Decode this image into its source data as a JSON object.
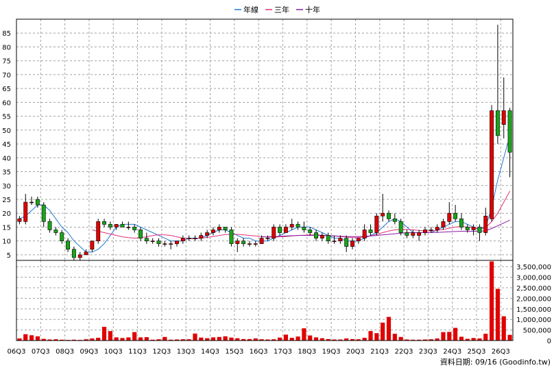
{
  "legend": {
    "items": [
      {
        "label": "年線",
        "color": "#1f77d0"
      },
      {
        "label": "三年",
        "color": "#e0307a"
      },
      {
        "label": "十年",
        "color": "#8a1aa8"
      }
    ]
  },
  "footer_label": "資料日期: 09/16  (Goodinfo.tw)",
  "colors": {
    "up": "#e00000",
    "down": "#1aa51a",
    "volume": "#e00000",
    "grid": "#a0a0a0"
  },
  "chart_data": [
    {
      "type": "candlestick",
      "title": "",
      "ylim": [
        0,
        90
      ],
      "ytick_labels": [
        "5",
        "10",
        "15",
        "20",
        "25",
        "30",
        "35",
        "40",
        "45",
        "50",
        "55",
        "60",
        "65",
        "70",
        "75",
        "80",
        "85"
      ],
      "ytick_values": [
        5,
        10,
        15,
        20,
        25,
        30,
        35,
        40,
        45,
        50,
        55,
        60,
        65,
        70,
        75,
        80,
        85
      ],
      "xtick_labels": [
        "06Q3",
        "07Q3",
        "08Q3",
        "09Q3",
        "10Q3",
        "11Q3",
        "12Q3",
        "13Q3",
        "14Q3",
        "15Q3",
        "16Q3",
        "17Q3",
        "18Q3",
        "19Q3",
        "20Q3",
        "21Q3",
        "22Q3",
        "23Q3",
        "24Q3",
        "25Q3",
        "26Q3"
      ],
      "grid": true,
      "legend_position": "top",
      "candles": [
        {
          "o": 17,
          "h": 19,
          "l": 16,
          "c": 18
        },
        {
          "o": 17,
          "h": 27,
          "l": 16,
          "c": 24
        },
        {
          "o": 24,
          "h": 26,
          "l": 23,
          "c": 24
        },
        {
          "o": 25,
          "h": 26,
          "l": 22,
          "c": 23
        },
        {
          "o": 23,
          "h": 24,
          "l": 15,
          "c": 17
        },
        {
          "o": 17,
          "h": 18,
          "l": 13,
          "c": 14
        },
        {
          "o": 14,
          "h": 15,
          "l": 12,
          "c": 13
        },
        {
          "o": 13,
          "h": 14,
          "l": 9,
          "c": 10
        },
        {
          "o": 10,
          "h": 11,
          "l": 6,
          "c": 7
        },
        {
          "o": 7,
          "h": 8,
          "l": 3,
          "c": 4
        },
        {
          "o": 4,
          "h": 6,
          "l": 3,
          "c": 5
        },
        {
          "o": 5,
          "h": 7,
          "l": 5,
          "c": 6
        },
        {
          "o": 7,
          "h": 10,
          "l": 6,
          "c": 10
        },
        {
          "o": 10,
          "h": 18,
          "l": 9,
          "c": 17
        },
        {
          "o": 17,
          "h": 18,
          "l": 15,
          "c": 16
        },
        {
          "o": 16,
          "h": 17,
          "l": 14,
          "c": 15
        },
        {
          "o": 15,
          "h": 16,
          "l": 14,
          "c": 16
        },
        {
          "o": 16,
          "h": 17,
          "l": 15,
          "c": 15
        },
        {
          "o": 15,
          "h": 17,
          "l": 14,
          "c": 15
        },
        {
          "o": 15,
          "h": 16,
          "l": 13,
          "c": 14
        },
        {
          "o": 14,
          "h": 15,
          "l": 10,
          "c": 11
        },
        {
          "o": 11,
          "h": 13,
          "l": 9,
          "c": 10
        },
        {
          "o": 10,
          "h": 11,
          "l": 9,
          "c": 10
        },
        {
          "o": 10,
          "h": 11,
          "l": 8,
          "c": 9
        },
        {
          "o": 9,
          "h": 10,
          "l": 8,
          "c": 9
        },
        {
          "o": 9,
          "h": 10,
          "l": 7,
          "c": 9
        },
        {
          "o": 9,
          "h": 10,
          "l": 8,
          "c": 10
        },
        {
          "o": 10,
          "h": 12,
          "l": 9,
          "c": 11
        },
        {
          "o": 11,
          "h": 12,
          "l": 10,
          "c": 11
        },
        {
          "o": 11,
          "h": 12,
          "l": 10,
          "c": 11
        },
        {
          "o": 11,
          "h": 13,
          "l": 10,
          "c": 12
        },
        {
          "o": 12,
          "h": 14,
          "l": 11,
          "c": 13
        },
        {
          "o": 13,
          "h": 15,
          "l": 12,
          "c": 14
        },
        {
          "o": 14,
          "h": 16,
          "l": 13,
          "c": 15
        },
        {
          "o": 15,
          "h": 15,
          "l": 13,
          "c": 14
        },
        {
          "o": 14,
          "h": 15,
          "l": 8,
          "c": 9
        },
        {
          "o": 9,
          "h": 11,
          "l": 6,
          "c": 10
        },
        {
          "o": 10,
          "h": 11,
          "l": 8,
          "c": 9
        },
        {
          "o": 9,
          "h": 10,
          "l": 8,
          "c": 9
        },
        {
          "o": 9,
          "h": 10,
          "l": 8,
          "c": 9
        },
        {
          "o": 9,
          "h": 12,
          "l": 9,
          "c": 11
        },
        {
          "o": 11,
          "h": 12,
          "l": 10,
          "c": 11
        },
        {
          "o": 11,
          "h": 16,
          "l": 10,
          "c": 15
        },
        {
          "o": 15,
          "h": 16,
          "l": 12,
          "c": 13
        },
        {
          "o": 13,
          "h": 16,
          "l": 13,
          "c": 15
        },
        {
          "o": 15,
          "h": 18,
          "l": 14,
          "c": 16
        },
        {
          "o": 16,
          "h": 17,
          "l": 14,
          "c": 15
        },
        {
          "o": 15,
          "h": 17,
          "l": 13,
          "c": 14
        },
        {
          "o": 14,
          "h": 15,
          "l": 12,
          "c": 13
        },
        {
          "o": 13,
          "h": 14,
          "l": 10,
          "c": 11
        },
        {
          "o": 11,
          "h": 13,
          "l": 10,
          "c": 12
        },
        {
          "o": 12,
          "h": 13,
          "l": 9,
          "c": 10
        },
        {
          "o": 10,
          "h": 12,
          "l": 9,
          "c": 10
        },
        {
          "o": 10,
          "h": 12,
          "l": 9,
          "c": 11
        },
        {
          "o": 11,
          "h": 12,
          "l": 6,
          "c": 8
        },
        {
          "o": 8,
          "h": 11,
          "l": 7,
          "c": 10
        },
        {
          "o": 10,
          "h": 11,
          "l": 9,
          "c": 11
        },
        {
          "o": 11,
          "h": 16,
          "l": 10,
          "c": 14
        },
        {
          "o": 14,
          "h": 16,
          "l": 12,
          "c": 13
        },
        {
          "o": 13,
          "h": 20,
          "l": 12,
          "c": 19
        },
        {
          "o": 19,
          "h": 27,
          "l": 17,
          "c": 20
        },
        {
          "o": 20,
          "h": 21,
          "l": 17,
          "c": 18
        },
        {
          "o": 18,
          "h": 20,
          "l": 16,
          "c": 17
        },
        {
          "o": 17,
          "h": 18,
          "l": 12,
          "c": 13
        },
        {
          "o": 13,
          "h": 14,
          "l": 11,
          "c": 12
        },
        {
          "o": 12,
          "h": 14,
          "l": 11,
          "c": 13
        },
        {
          "o": 12,
          "h": 14,
          "l": 10,
          "c": 13
        },
        {
          "o": 13,
          "h": 15,
          "l": 12,
          "c": 14
        },
        {
          "o": 14,
          "h": 15,
          "l": 13,
          "c": 14
        },
        {
          "o": 14,
          "h": 16,
          "l": 13,
          "c": 15
        },
        {
          "o": 15,
          "h": 18,
          "l": 14,
          "c": 17
        },
        {
          "o": 17,
          "h": 24,
          "l": 16,
          "c": 20
        },
        {
          "o": 20,
          "h": 23,
          "l": 17,
          "c": 18
        },
        {
          "o": 18,
          "h": 20,
          "l": 14,
          "c": 15
        },
        {
          "o": 15,
          "h": 16,
          "l": 13,
          "c": 14
        },
        {
          "o": 14,
          "h": 16,
          "l": 12,
          "c": 15
        },
        {
          "o": 15,
          "h": 16,
          "l": 10,
          "c": 13
        },
        {
          "o": 13,
          "h": 22,
          "l": 12,
          "c": 19
        },
        {
          "o": 18,
          "h": 59,
          "l": 17,
          "c": 57
        },
        {
          "o": 57,
          "h": 88,
          "l": 45,
          "c": 48
        },
        {
          "o": 52,
          "h": 69,
          "l": 47,
          "c": 57
        },
        {
          "o": 57,
          "h": 58,
          "l": 33,
          "c": 42
        }
      ],
      "series": [
        {
          "name": "年線",
          "values": [
            18,
            19,
            21,
            23,
            23,
            21,
            18,
            15,
            13,
            10,
            8,
            6,
            6,
            7,
            9,
            12,
            15,
            16,
            16,
            16,
            15,
            14,
            13,
            12,
            11,
            10,
            10,
            10,
            11,
            11,
            11,
            12,
            13,
            14,
            14,
            13,
            12,
            11,
            11,
            10,
            10,
            10,
            11,
            12,
            13,
            14,
            15,
            15,
            15,
            14,
            13,
            12,
            11,
            11,
            10,
            10,
            10,
            11,
            12,
            13,
            15,
            17,
            18,
            17,
            15,
            13,
            13,
            13,
            13,
            14,
            15,
            16,
            17,
            17,
            16,
            15,
            14,
            15,
            22,
            32,
            40,
            48
          ]
        },
        {
          "name": "三年",
          "values": [
            null,
            null,
            null,
            null,
            null,
            null,
            null,
            null,
            null,
            null,
            null,
            null,
            14,
            13.5,
            13,
            12.5,
            12,
            11.5,
            11.2,
            11,
            11.2,
            11.5,
            12,
            12.2,
            12.2,
            12,
            11.5,
            11,
            10.8,
            10.8,
            11,
            11.3,
            11.6,
            12,
            12.3,
            12.4,
            12.4,
            12.2,
            12,
            11.8,
            11.6,
            11.4,
            11.4,
            11.5,
            11.6,
            11.8,
            12,
            12.1,
            12.2,
            12.2,
            12.1,
            12,
            11.8,
            11.6,
            11.4,
            11.2,
            11.2,
            11.4,
            11.8,
            12.4,
            13,
            13.6,
            14,
            14.2,
            14.2,
            14,
            13.8,
            13.6,
            13.6,
            13.8,
            14.2,
            14.6,
            15,
            15.2,
            15,
            14.8,
            14.6,
            14.8,
            17,
            20,
            24,
            28
          ]
        },
        {
          "name": "十年",
          "values": [
            null,
            null,
            null,
            null,
            null,
            null,
            null,
            null,
            null,
            null,
            null,
            null,
            null,
            null,
            null,
            null,
            null,
            null,
            null,
            null,
            null,
            null,
            null,
            null,
            null,
            null,
            null,
            null,
            null,
            null,
            null,
            null,
            null,
            null,
            null,
            null,
            null,
            null,
            null,
            null,
            11.5,
            11.5,
            11.6,
            11.7,
            11.8,
            11.9,
            12,
            12,
            12,
            12,
            12,
            11.9,
            11.8,
            11.7,
            11.6,
            11.6,
            11.6,
            11.7,
            11.8,
            12,
            12.2,
            12.4,
            12.6,
            12.8,
            13,
            13,
            13,
            13,
            13,
            13.1,
            13.2,
            13.3,
            13.4,
            13.5,
            13.5,
            13.5,
            13.5,
            13.7,
            14.5,
            15.5,
            16.5,
            17.5
          ]
        }
      ]
    },
    {
      "type": "bar",
      "title": "",
      "ylim": [
        0,
        3800000
      ],
      "ytick_labels": [
        "0",
        "500,000",
        "1,000,000",
        "1,500,000",
        "2,000,000",
        "2,500,000",
        "3,000,000",
        "3,500,000"
      ],
      "ytick_values": [
        0,
        500000,
        1000000,
        1500000,
        2000000,
        2500000,
        3000000,
        3500000
      ],
      "grid": true,
      "values": [
        100000,
        300000,
        250000,
        200000,
        80000,
        50000,
        60000,
        40000,
        30000,
        40000,
        30000,
        60000,
        100000,
        130000,
        650000,
        450000,
        150000,
        120000,
        150000,
        400000,
        150000,
        160000,
        40000,
        60000,
        170000,
        40000,
        50000,
        60000,
        60000,
        330000,
        140000,
        110000,
        150000,
        170000,
        200000,
        140000,
        110000,
        70000,
        70000,
        100000,
        60000,
        50000,
        60000,
        140000,
        280000,
        130000,
        190000,
        580000,
        240000,
        150000,
        110000,
        70000,
        50000,
        50000,
        100000,
        70000,
        60000,
        130000,
        450000,
        350000,
        850000,
        1120000,
        320000,
        170000,
        50000,
        40000,
        40000,
        50000,
        60000,
        100000,
        400000,
        410000,
        600000,
        180000,
        80000,
        120000,
        100000,
        320000,
        3750000,
        2450000,
        1150000,
        270000
      ]
    }
  ]
}
